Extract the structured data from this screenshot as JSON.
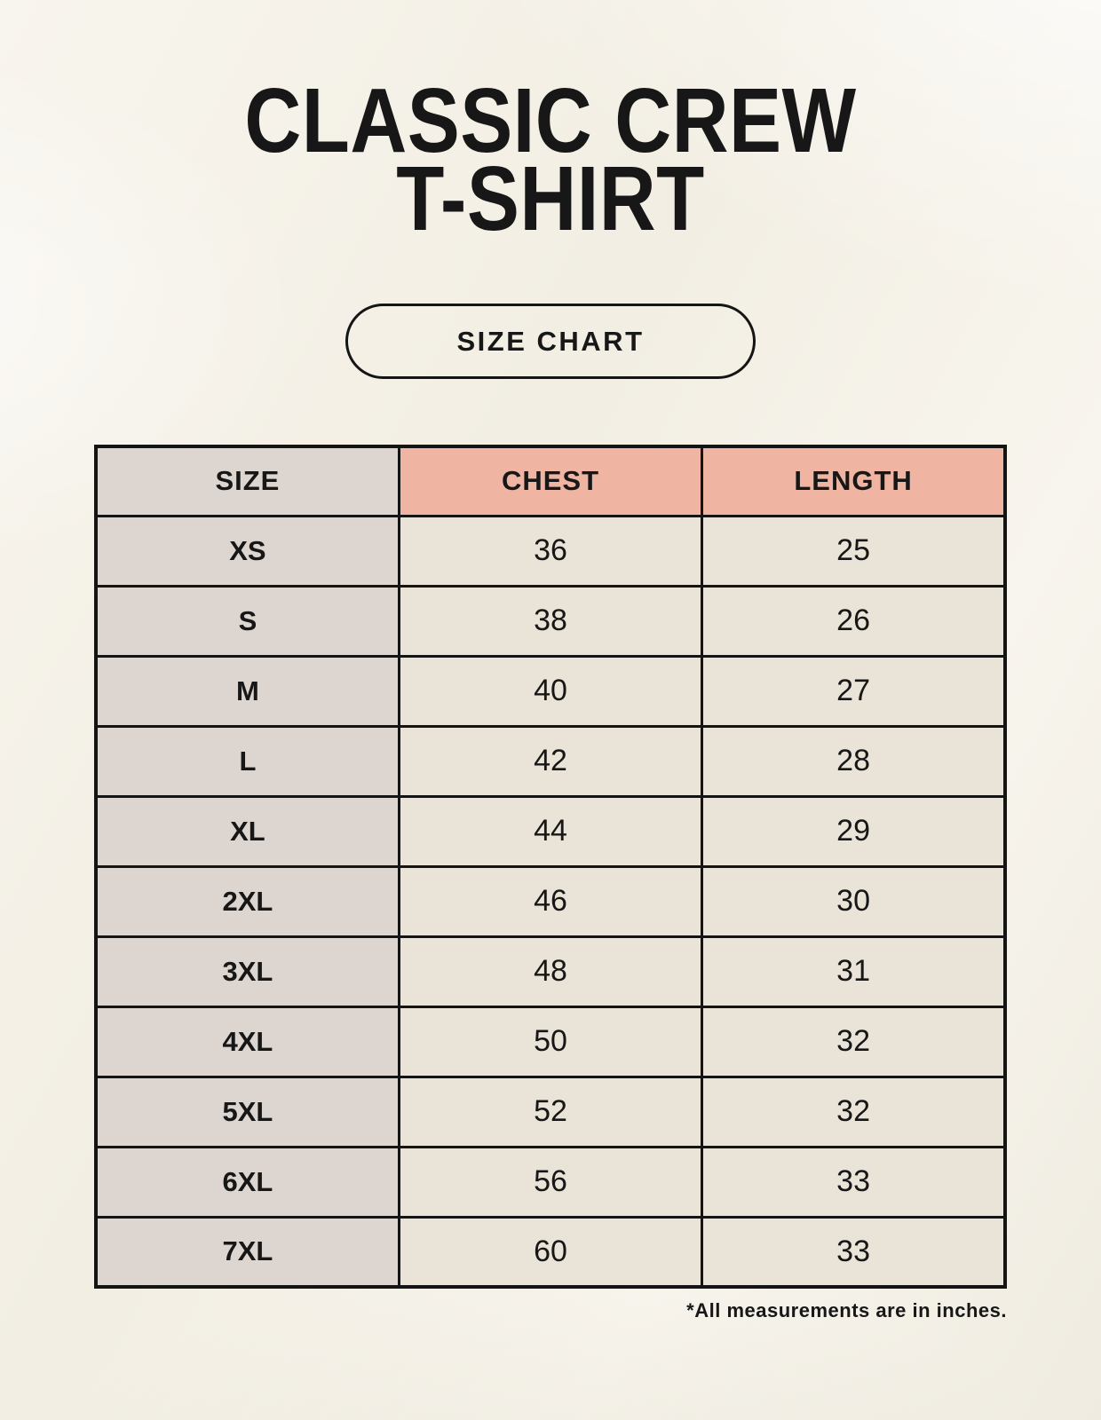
{
  "header": {
    "title_line1": "CLASSIC CREW",
    "title_line2": "T-SHIRT",
    "size_chart_label": "SIZE CHART"
  },
  "footnote": "*All measurements are in inches.",
  "colors": {
    "background": "#f5f2e9",
    "ink": "#171717",
    "table_border": "#141414",
    "header_pink": "#f0b5a2",
    "size_gray": "#ddd6d0",
    "cell_cream": "#eae3d7"
  },
  "chart_data": {
    "type": "table",
    "title": "Classic Crew T-Shirt Size Chart",
    "columns": [
      "SIZE",
      "CHEST",
      "LENGTH"
    ],
    "rows": [
      [
        "XS",
        36,
        25
      ],
      [
        "S",
        38,
        26
      ],
      [
        "M",
        40,
        27
      ],
      [
        "L",
        42,
        28
      ],
      [
        "XL",
        44,
        29
      ],
      [
        "2XL",
        46,
        30
      ],
      [
        "3XL",
        48,
        31
      ],
      [
        "4XL",
        50,
        32
      ],
      [
        "5XL",
        52,
        32
      ],
      [
        "6XL",
        56,
        33
      ],
      [
        "7XL",
        60,
        33
      ]
    ],
    "units": "inches",
    "grid": "on",
    "legend": "none"
  }
}
